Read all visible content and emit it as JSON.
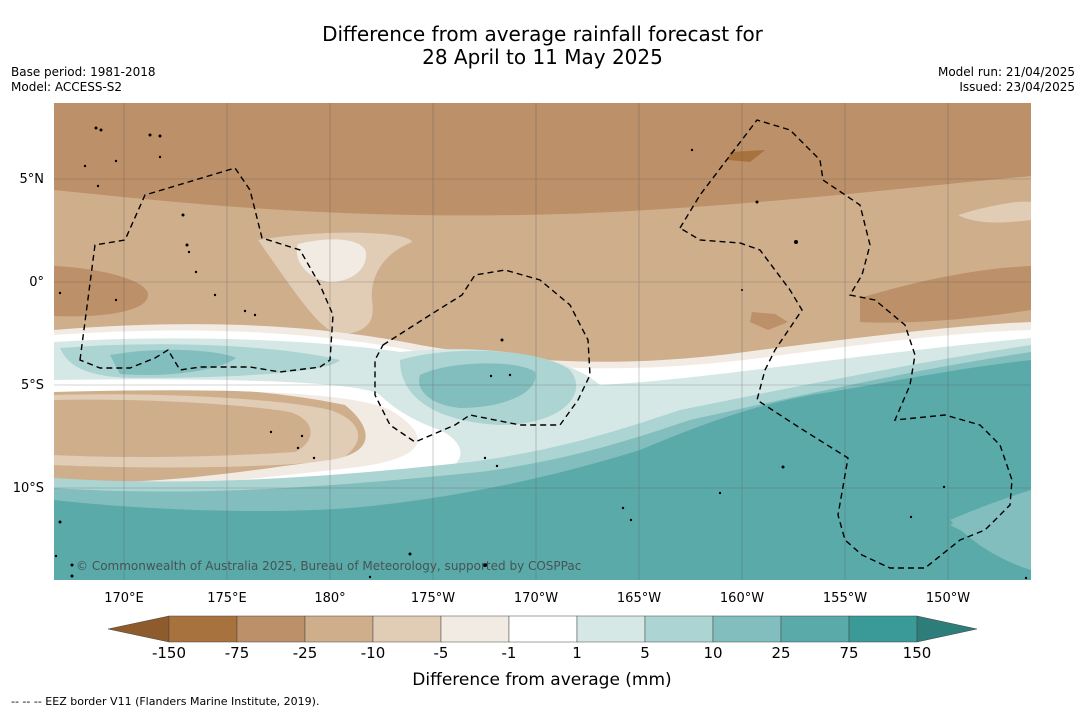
{
  "title_line1": "Difference from average rainfall forecast for",
  "title_line2": "28 April to 11 May 2025",
  "base_period": "Base period: 1981-2018",
  "model": "Model: ACCESS-S2",
  "model_run": "Model run: 21/04/2025",
  "issued": "Issued: 23/04/2025",
  "copyright": "© Commonwealth of Australia 2025, Bureau of Meteorology, supported by COSPPac",
  "map": {
    "lat_ticks": [
      "5°N",
      "0°",
      "5°S",
      "10°S"
    ],
    "lon_ticks": [
      "170°E",
      "175°E",
      "180°",
      "175°W",
      "170°W",
      "165°W",
      "160°W",
      "155°W",
      "150°W"
    ],
    "lat_range_deg": [
      -14.5,
      8.5
    ],
    "lon_range_deg_east": [
      166.5,
      213.5
    ],
    "grid": true
  },
  "colorbar": {
    "label": "Difference from average (mm)",
    "tick_labels": [
      "-150",
      "-75",
      "-25",
      "-10",
      "-5",
      "-1",
      "1",
      "5",
      "10",
      "25",
      "75",
      "150"
    ],
    "colors": {
      "below_min": "#8e5b2c",
      "bins": [
        "#a8723e",
        "#bc9068",
        "#cfae8c",
        "#e1ccb6",
        "#f2ebe3",
        "#ffffff",
        "#d6e8e6",
        "#acd4d2",
        "#82bebd",
        "#5aaaaa",
        "#3a9a97"
      ],
      "above_max": "#2d7d7a"
    }
  },
  "footnote": "-- -- -- EEZ border V11 (Flanders Marine Institute, 2019)."
}
